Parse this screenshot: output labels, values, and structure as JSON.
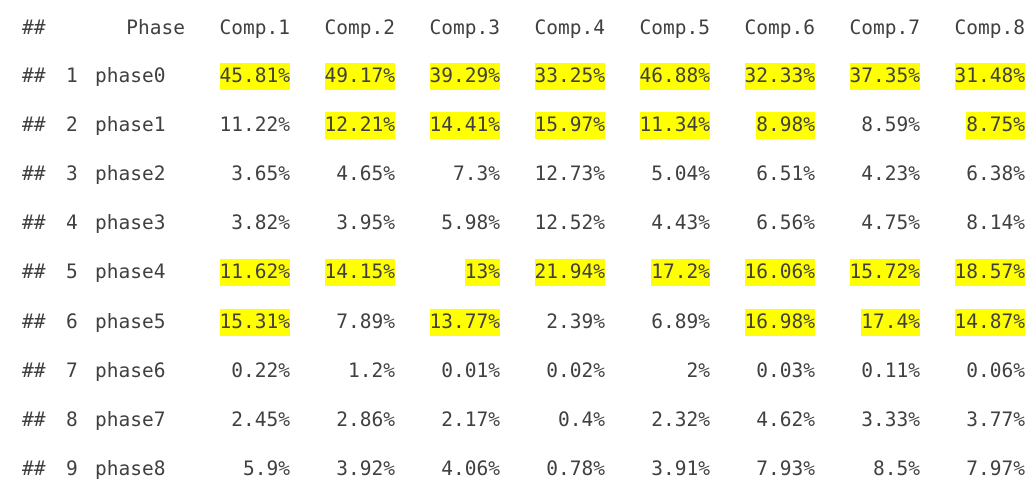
{
  "prompt": "##",
  "header": [
    "Phase",
    "Comp.1",
    "Comp.2",
    "Comp.3",
    "Comp.4",
    "Comp.5",
    "Comp.6",
    "Comp.7",
    "Comp.8"
  ],
  "colors": {
    "highlight": "#ffff00",
    "text": "#404040",
    "background": "#ffffff"
  },
  "rows": [
    {
      "num": "1",
      "phase": "phase0",
      "values": [
        "45.81%",
        "49.17%",
        "39.29%",
        "33.25%",
        "46.88%",
        "32.33%",
        "37.35%",
        "31.48%"
      ],
      "highlighted": [
        true,
        true,
        true,
        true,
        true,
        true,
        true,
        true
      ]
    },
    {
      "num": "2",
      "phase": "phase1",
      "values": [
        "11.22%",
        "12.21%",
        "14.41%",
        "15.97%",
        "11.34%",
        "8.98%",
        "8.59%",
        "8.75%"
      ],
      "highlighted": [
        false,
        true,
        true,
        true,
        true,
        true,
        false,
        true
      ]
    },
    {
      "num": "3",
      "phase": "phase2",
      "values": [
        "3.65%",
        "4.65%",
        "7.3%",
        "12.73%",
        "5.04%",
        "6.51%",
        "4.23%",
        "6.38%"
      ],
      "highlighted": [
        false,
        false,
        false,
        false,
        false,
        false,
        false,
        false
      ]
    },
    {
      "num": "4",
      "phase": "phase3",
      "values": [
        "3.82%",
        "3.95%",
        "5.98%",
        "12.52%",
        "4.43%",
        "6.56%",
        "4.75%",
        "8.14%"
      ],
      "highlighted": [
        false,
        false,
        false,
        false,
        false,
        false,
        false,
        false
      ]
    },
    {
      "num": "5",
      "phase": "phase4",
      "values": [
        "11.62%",
        "14.15%",
        "13%",
        "21.94%",
        "17.2%",
        "16.06%",
        "15.72%",
        "18.57%"
      ],
      "highlighted": [
        true,
        true,
        true,
        true,
        true,
        true,
        true,
        true
      ]
    },
    {
      "num": "6",
      "phase": "phase5",
      "values": [
        "15.31%",
        "7.89%",
        "13.77%",
        "2.39%",
        "6.89%",
        "16.98%",
        "17.4%",
        "14.87%"
      ],
      "highlighted": [
        true,
        false,
        true,
        false,
        false,
        true,
        true,
        true
      ]
    },
    {
      "num": "7",
      "phase": "phase6",
      "values": [
        "0.22%",
        "1.2%",
        "0.01%",
        "0.02%",
        "2%",
        "0.03%",
        "0.11%",
        "0.06%"
      ],
      "highlighted": [
        false,
        false,
        false,
        false,
        false,
        false,
        false,
        false
      ]
    },
    {
      "num": "8",
      "phase": "phase7",
      "values": [
        "2.45%",
        "2.86%",
        "2.17%",
        "0.4%",
        "2.32%",
        "4.62%",
        "3.33%",
        "3.77%"
      ],
      "highlighted": [
        false,
        false,
        false,
        false,
        false,
        false,
        false,
        false
      ]
    },
    {
      "num": "9",
      "phase": "phase8",
      "values": [
        "5.9%",
        "3.92%",
        "4.06%",
        "0.78%",
        "3.91%",
        "7.93%",
        "8.5%",
        "7.97%"
      ],
      "highlighted": [
        false,
        false,
        false,
        false,
        false,
        false,
        false,
        false
      ]
    }
  ]
}
